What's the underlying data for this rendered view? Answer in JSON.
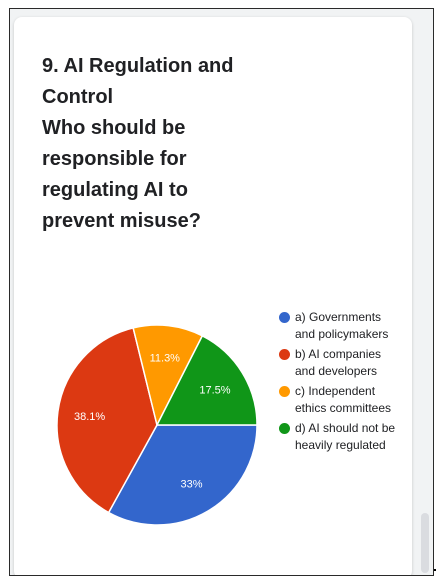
{
  "question": {
    "title": "9. AI Regulation and\nControl\nWho should be\nresponsible for\nregulating AI to\nprevent misuse?"
  },
  "chart_data": {
    "type": "pie",
    "title": "",
    "slices": [
      {
        "label": "a) Governments and policymakers",
        "value": 33,
        "display": "33%",
        "color": "#3366cc"
      },
      {
        "label": "b) AI companies and developers",
        "value": 38.1,
        "display": "38.1%",
        "color": "#dc3912"
      },
      {
        "label": "c) Independent ethics committees",
        "value": 11.3,
        "display": "11.3%",
        "color": "#ff9900"
      },
      {
        "label": "d) AI should not be heavily regulated",
        "value": 17.5,
        "display": "17.5%",
        "color": "#109618"
      }
    ],
    "legend_position": "right"
  }
}
